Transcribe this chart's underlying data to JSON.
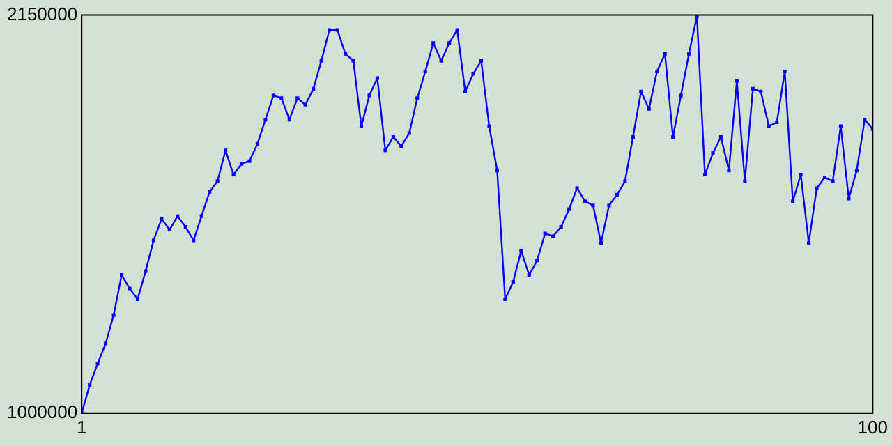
{
  "chart_data": {
    "type": "line",
    "x": [
      1,
      2,
      3,
      4,
      5,
      6,
      7,
      8,
      9,
      10,
      11,
      12,
      13,
      14,
      15,
      16,
      17,
      18,
      19,
      20,
      21,
      22,
      23,
      24,
      25,
      26,
      27,
      28,
      29,
      30,
      31,
      32,
      33,
      34,
      35,
      36,
      37,
      38,
      39,
      40,
      41,
      42,
      43,
      44,
      45,
      46,
      47,
      48,
      49,
      50,
      51,
      52,
      53,
      54,
      55,
      56,
      57,
      58,
      59,
      60,
      61,
      62,
      63,
      64,
      65,
      66,
      67,
      68,
      69,
      70,
      71,
      72,
      73,
      74,
      75,
      76,
      77,
      78,
      79,
      80,
      81,
      82,
      83,
      84,
      85,
      86,
      87,
      88,
      89,
      90,
      91,
      92,
      93,
      94,
      95,
      96,
      97,
      98,
      99,
      100
    ],
    "series": [
      {
        "color": "#0000ff",
        "values": [
          1000000,
          1081000,
          1143000,
          1201000,
          1283000,
          1399000,
          1360000,
          1329000,
          1410000,
          1499000,
          1561000,
          1530000,
          1569000,
          1538000,
          1499000,
          1569000,
          1639000,
          1670000,
          1759000,
          1689000,
          1720000,
          1728000,
          1778000,
          1848000,
          1918000,
          1910000,
          1848000,
          1910000,
          1891000,
          1937000,
          2018000,
          2107000,
          2107000,
          2038000,
          2018000,
          1829000,
          1918000,
          1968000,
          1759000,
          1798000,
          1771000,
          1809000,
          1910000,
          1987000,
          2069000,
          2018000,
          2069000,
          2107000,
          1929000,
          1980000,
          2018000,
          1829000,
          1701000,
          1329000,
          1379000,
          1469000,
          1399000,
          1441000,
          1519000,
          1511000,
          1538000,
          1589000,
          1650000,
          1612000,
          1600000,
          1492000,
          1600000,
          1631000,
          1670000,
          1798000,
          1929000,
          1879000,
          1987000,
          2038000,
          1798000,
          1918000,
          2038000,
          2146000,
          1689000,
          1751000,
          1798000,
          1701000,
          1960000,
          1670000,
          1937000,
          1929000,
          1829000,
          1840000,
          1987000,
          1612000,
          1689000,
          1492000,
          1650000,
          1681000,
          1670000,
          1829000,
          1620000,
          1701000,
          1848000,
          1821000
        ]
      }
    ],
    "xlim": [
      1,
      100
    ],
    "xticks": [
      1,
      100
    ],
    "ylim": [
      1000000,
      2150000
    ],
    "yticks": [
      1000000,
      2150000
    ],
    "marker": "square",
    "line_style": "solid"
  }
}
